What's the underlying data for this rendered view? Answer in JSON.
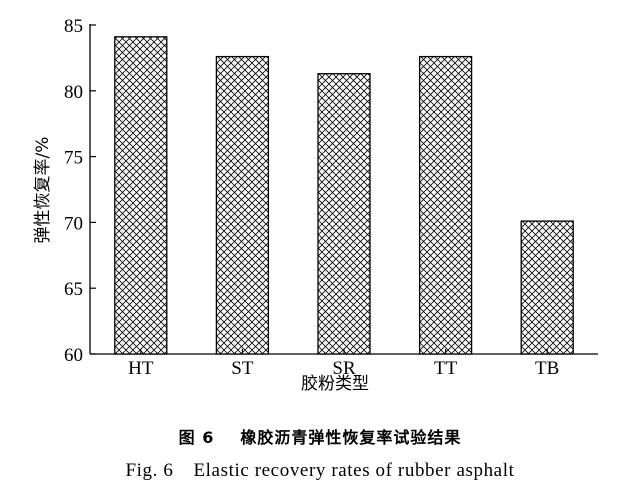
{
  "chart_data": {
    "type": "bar",
    "categories": [
      "HT",
      "ST",
      "SR",
      "TT",
      "TB"
    ],
    "values": [
      84.1,
      82.6,
      81.3,
      82.6,
      70.1
    ],
    "xlabel": "胶粉类型",
    "ylabel": "弹性恢复率/%",
    "ylim": [
      60,
      85
    ],
    "yticks": [
      60,
      65,
      70,
      75,
      80,
      85
    ],
    "grid": false,
    "bar_fill": "crosshatch",
    "colors": {
      "bar_edge": "#000000",
      "hatch": "#000000",
      "background": "#ffffff"
    }
  },
  "caption": {
    "cn_label": "图 6",
    "cn_text": "橡胶沥青弹性恢复率试验结果",
    "en_label": "Fig. 6",
    "en_text": "Elastic recovery rates of rubber asphalt"
  }
}
